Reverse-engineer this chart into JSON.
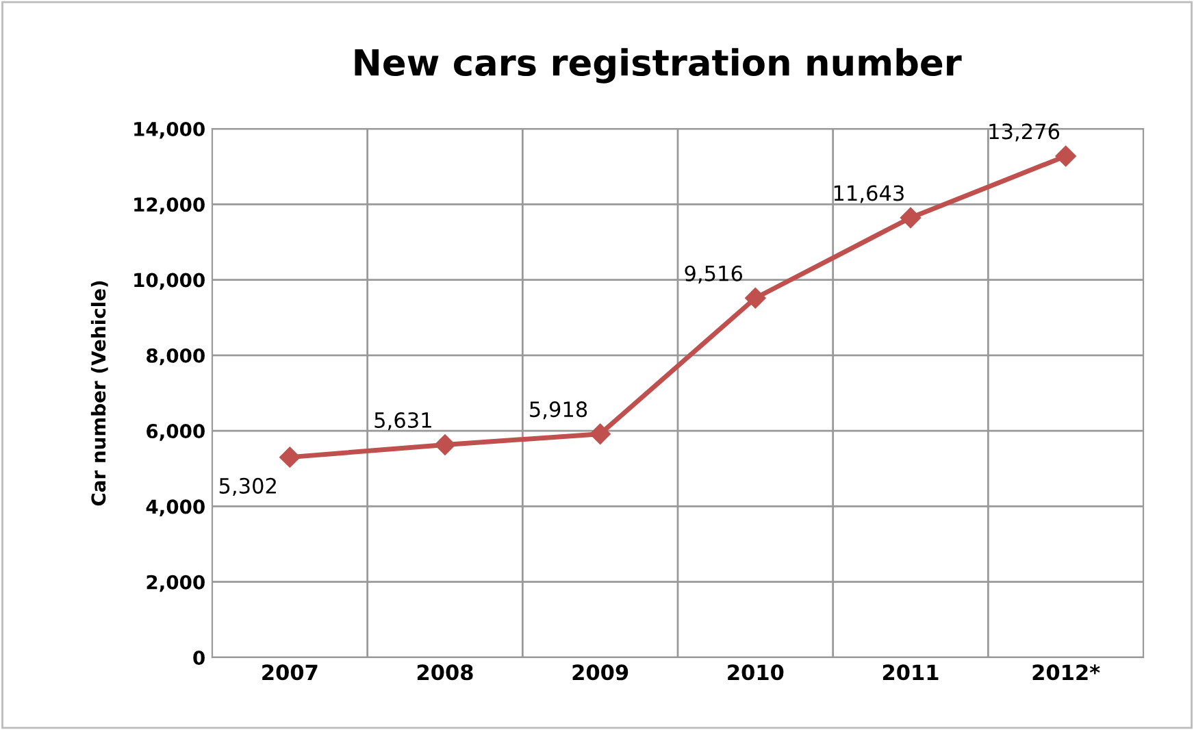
{
  "chart_data": {
    "type": "line",
    "title": "New cars registration number",
    "ylabel": "Car number (Vehicle)",
    "categories": [
      "2007",
      "2008",
      "2009",
      "2010",
      "2011",
      "2012*"
    ],
    "series": [
      {
        "color": "#c0504d",
        "values": [
          5302,
          5631,
          5918,
          9516,
          11643,
          13276
        ],
        "value_labels": [
          "5,302",
          "5,631",
          "5,918",
          "9,516",
          "11,643",
          "13,276"
        ]
      }
    ],
    "ylim": [
      0,
      14000
    ],
    "yticks": [
      {
        "value": 0,
        "label": "0"
      },
      {
        "value": 2000,
        "label": "2,000"
      },
      {
        "value": 4000,
        "label": "4,000"
      },
      {
        "value": 6000,
        "label": "6,000"
      },
      {
        "value": 8000,
        "label": "8,000"
      },
      {
        "value": 10000,
        "label": "10,000"
      },
      {
        "value": 12000,
        "label": "12,000"
      },
      {
        "value": 14000,
        "label": "14,000"
      }
    ],
    "grid": true,
    "marker": "diamond",
    "line_style": "solid",
    "legend": false
  }
}
